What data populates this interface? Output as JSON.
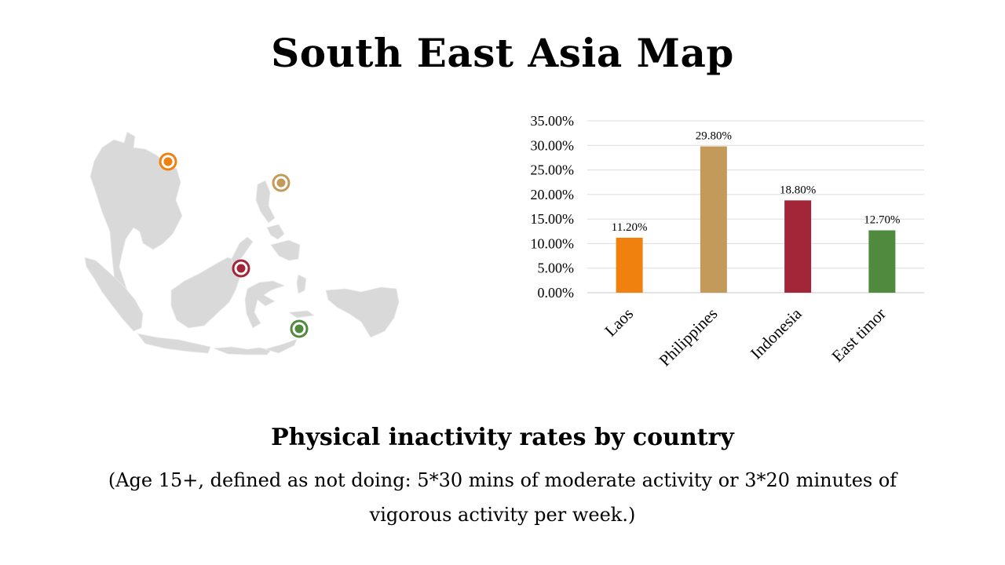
{
  "slide": {
    "title": "South East Asia Map",
    "subtitle": "Physical inactivity rates by country",
    "note": "(Age 15+, defined as not doing: 5*30 mins of moderate activity or 3*20 minutes of vigorous activity per week.)"
  },
  "map": {
    "land_color": "#d9d9d9",
    "markers": [
      {
        "country": "Laos",
        "color": "#f0810f"
      },
      {
        "country": "Philippines",
        "color": "#c49a5a"
      },
      {
        "country": "Indonesia",
        "color": "#a32638"
      },
      {
        "country": "East timor",
        "color": "#4f8a3e"
      }
    ]
  },
  "chart_data": {
    "type": "bar",
    "categories": [
      "Laos",
      "Philippines",
      "Indonesia",
      "East timor"
    ],
    "values": [
      11.2,
      29.8,
      18.8,
      12.7
    ],
    "data_labels": [
      "11.20%",
      "29.80%",
      "18.80%",
      "12.70%"
    ],
    "colors": [
      "#f0810f",
      "#c49a5a",
      "#a32638",
      "#4f8a3e"
    ],
    "ylim": [
      0,
      35
    ],
    "yticks": [
      "0.00%",
      "5.00%",
      "10.00%",
      "15.00%",
      "20.00%",
      "25.00%",
      "30.00%",
      "35.00%"
    ],
    "grid": true,
    "legend": "none",
    "title": "",
    "xlabel": "",
    "ylabel": ""
  }
}
